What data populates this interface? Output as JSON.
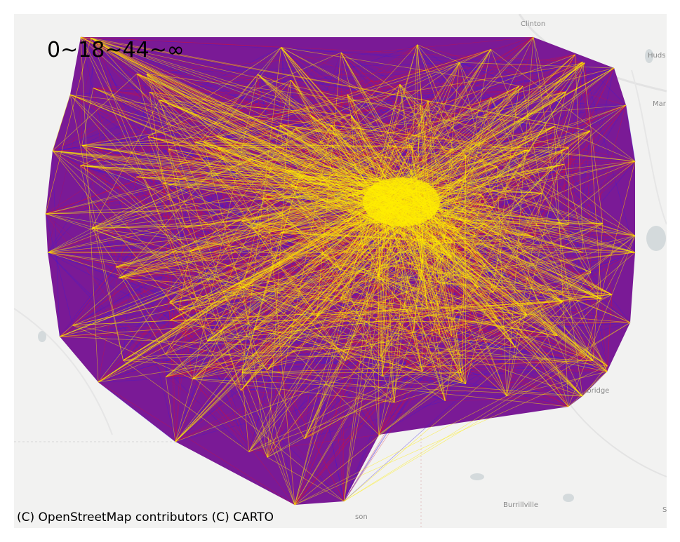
{
  "map": {
    "legend_text": "0~18~44~∞",
    "attribution": "(C) OpenStreetMap contributors (C) CARTO",
    "place_labels": [
      "Clinton",
      "Huds",
      "Mar",
      "Uxbridge",
      "Burrillville",
      "son",
      "Sa"
    ],
    "colors": {
      "basemap": "#f2f2f1",
      "water": "#d4dadc",
      "low": "#3b1bd9",
      "mid": "#e0102a",
      "high": "#ffee00",
      "region_fill": "#8a1f8c"
    },
    "legend_classes": [
      {
        "range": "0-18",
        "color": "#3b1bd9"
      },
      {
        "range": "18-44",
        "color": "#e0102a"
      },
      {
        "range": "44+",
        "color": "#ffee00"
      }
    ]
  }
}
